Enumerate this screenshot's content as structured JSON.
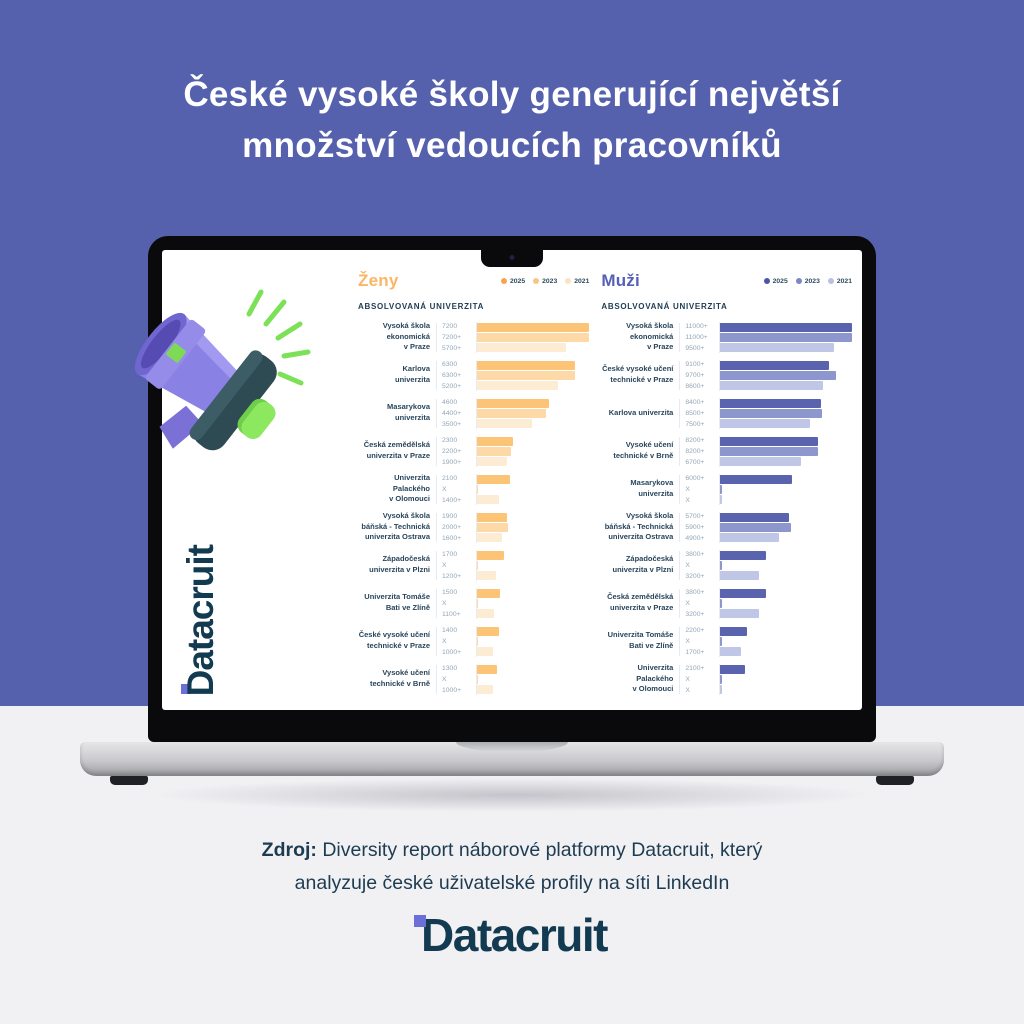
{
  "poster": {
    "title_line1": "České vysoké školy generující největší",
    "title_line2": "množství vedoucích pracovníků",
    "source_label": "Zdroj:",
    "source_line1": "Diversity report náborové platformy Datacruit, který",
    "source_line2": "analyzuje české uživatelské profily na síti LinkedIn",
    "brand_logo": "Datacruit",
    "screen_vertical_logo": "Datacruit"
  },
  "colors": {
    "background_top": "#5661ad",
    "background_bottom": "#f1f0f3",
    "navy_text": "#1d3c52",
    "logo_navy": "#123a50",
    "logo_accent": "#6d6fd8"
  },
  "chart_data": [
    {
      "type": "bar",
      "orientation": "horizontal",
      "title": "Ženy",
      "title_color": "#fbb564",
      "column_header": "ABSOLVOVANÁ UNIVERZITA",
      "value_years": [
        "2025",
        "2023",
        "2021"
      ],
      "legend": [
        {
          "label": "2025",
          "color": "#f6a54e"
        },
        {
          "label": "2023",
          "color": "#f9c583"
        },
        {
          "label": "2021",
          "color": "#fbe3c2"
        }
      ],
      "bar_colors": [
        "#fcc477",
        "#fdd9a7",
        "#fcecd3"
      ],
      "max_value": 7200,
      "rows": [
        {
          "university": [
            "Vysoká škola",
            "ekonomická",
            "v Praze"
          ],
          "values": [
            "7200",
            "7200+",
            "5700+"
          ]
        },
        {
          "university": [
            "Karlova",
            "univerzita"
          ],
          "values": [
            "6300",
            "6300+",
            "5200+"
          ]
        },
        {
          "university": [
            "Masarykova",
            "univerzita"
          ],
          "values": [
            "4600",
            "4400+",
            "3500+"
          ]
        },
        {
          "university": [
            "Česká zemědělská",
            "univerzita v Praze"
          ],
          "values": [
            "2300",
            "2200+",
            "1900+"
          ]
        },
        {
          "university": [
            "Univerzita",
            "Palackého",
            "v Olomouci"
          ],
          "values": [
            "2100",
            "X",
            "1400+"
          ]
        },
        {
          "university": [
            "Vysoká škola",
            "báňská - Technická",
            "univerzita Ostrava"
          ],
          "values": [
            "1900",
            "2000+",
            "1600+"
          ]
        },
        {
          "university": [
            "Západočeská",
            "univerzita v Plzni"
          ],
          "values": [
            "1700",
            "X",
            "1200+"
          ]
        },
        {
          "university": [
            "Univerzita Tomáše",
            "Bati ve Zlíně"
          ],
          "values": [
            "1500",
            "X",
            "1100+"
          ]
        },
        {
          "university": [
            "České vysoké učení",
            "technické v Praze"
          ],
          "values": [
            "1400",
            "X",
            "1000+"
          ]
        },
        {
          "university": [
            "Vysoké učení",
            "technické v Brně"
          ],
          "values": [
            "1300",
            "X",
            "1000+"
          ]
        }
      ]
    },
    {
      "type": "bar",
      "orientation": "horizontal",
      "title": "Muži",
      "title_color": "#5560b8",
      "column_header": "ABSOLVOVANÁ UNIVERZITA",
      "value_years": [
        "2025",
        "2023",
        "2021"
      ],
      "legend": [
        {
          "label": "2025",
          "color": "#4a55aa"
        },
        {
          "label": "2023",
          "color": "#7b85c8"
        },
        {
          "label": "2021",
          "color": "#b9c0e3"
        }
      ],
      "bar_colors": [
        "#5a64ae",
        "#8e97cd",
        "#c0c6e5"
      ],
      "max_value": 11000,
      "rows": [
        {
          "university": [
            "Vysoká škola",
            "ekonomická",
            "v Praze"
          ],
          "values": [
            "11000+",
            "11000+",
            "9500+"
          ]
        },
        {
          "university": [
            "České vysoké učení",
            "technické v Praze"
          ],
          "values": [
            "9100+",
            "9700+",
            "8600+"
          ]
        },
        {
          "university": [
            "Karlova univerzita"
          ],
          "values": [
            "8400+",
            "8500+",
            "7500+"
          ]
        },
        {
          "university": [
            "Vysoké učení",
            "technické v Brně"
          ],
          "values": [
            "8200+",
            "8200+",
            "6700+"
          ]
        },
        {
          "university": [
            "Masarykova",
            "univerzita"
          ],
          "values": [
            "6000+",
            "X",
            "X"
          ]
        },
        {
          "university": [
            "Vysoká škola",
            "báňská - Technická",
            "univerzita Ostrava"
          ],
          "values": [
            "5700+",
            "5900+",
            "4900+"
          ]
        },
        {
          "university": [
            "Západočeská",
            "univerzita v Plzni"
          ],
          "values": [
            "3800+",
            "X",
            "3200+"
          ]
        },
        {
          "university": [
            "Česká zemědělská",
            "univerzita v Praze"
          ],
          "values": [
            "3800+",
            "X",
            "3200+"
          ]
        },
        {
          "university": [
            "Univerzita Tomáše",
            "Bati ve Zlíně"
          ],
          "values": [
            "2200+",
            "X",
            "1700+"
          ]
        },
        {
          "university": [
            "Univerzita",
            "Palackého",
            "v Olomouci"
          ],
          "values": [
            "2100+",
            "X",
            "X"
          ]
        }
      ]
    }
  ]
}
